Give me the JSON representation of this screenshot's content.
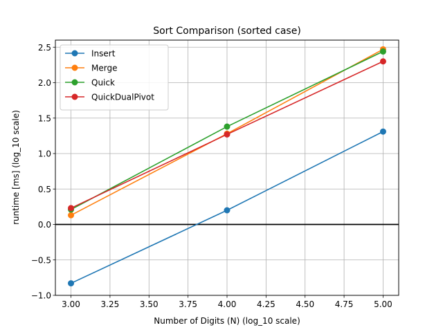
{
  "chart_data": {
    "type": "line",
    "title": "Sort Comparison (sorted case)",
    "xlabel": "Number of Digits (N) (log_10 scale)",
    "ylabel": "runtime [ms] (log_10 scale)",
    "x": [
      3.0,
      4.0,
      5.0
    ],
    "xlim": [
      2.9,
      5.1
    ],
    "ylim": [
      -1.0,
      2.6
    ],
    "xticks": [
      "3.00",
      "3.25",
      "3.50",
      "3.75",
      "4.00",
      "4.25",
      "4.50",
      "4.75",
      "5.00"
    ],
    "yticks": [
      "−1.0",
      "−0.5",
      "0.0",
      "0.5",
      "1.0",
      "1.5",
      "2.0",
      "2.5"
    ],
    "grid": true,
    "legend_position": "top-left",
    "reference_line_y": 0.0,
    "series": [
      {
        "name": "Insert",
        "values": [
          -0.83,
          0.2,
          1.31
        ],
        "color": "#1f77b4"
      },
      {
        "name": "Merge",
        "values": [
          0.13,
          1.28,
          2.47
        ],
        "color": "#ff7f0e"
      },
      {
        "name": "Quick",
        "values": [
          0.21,
          1.38,
          2.44
        ],
        "color": "#2ca02c"
      },
      {
        "name": "QuickDualPivot",
        "values": [
          0.23,
          1.27,
          2.3
        ],
        "color": "#d62728"
      }
    ]
  }
}
